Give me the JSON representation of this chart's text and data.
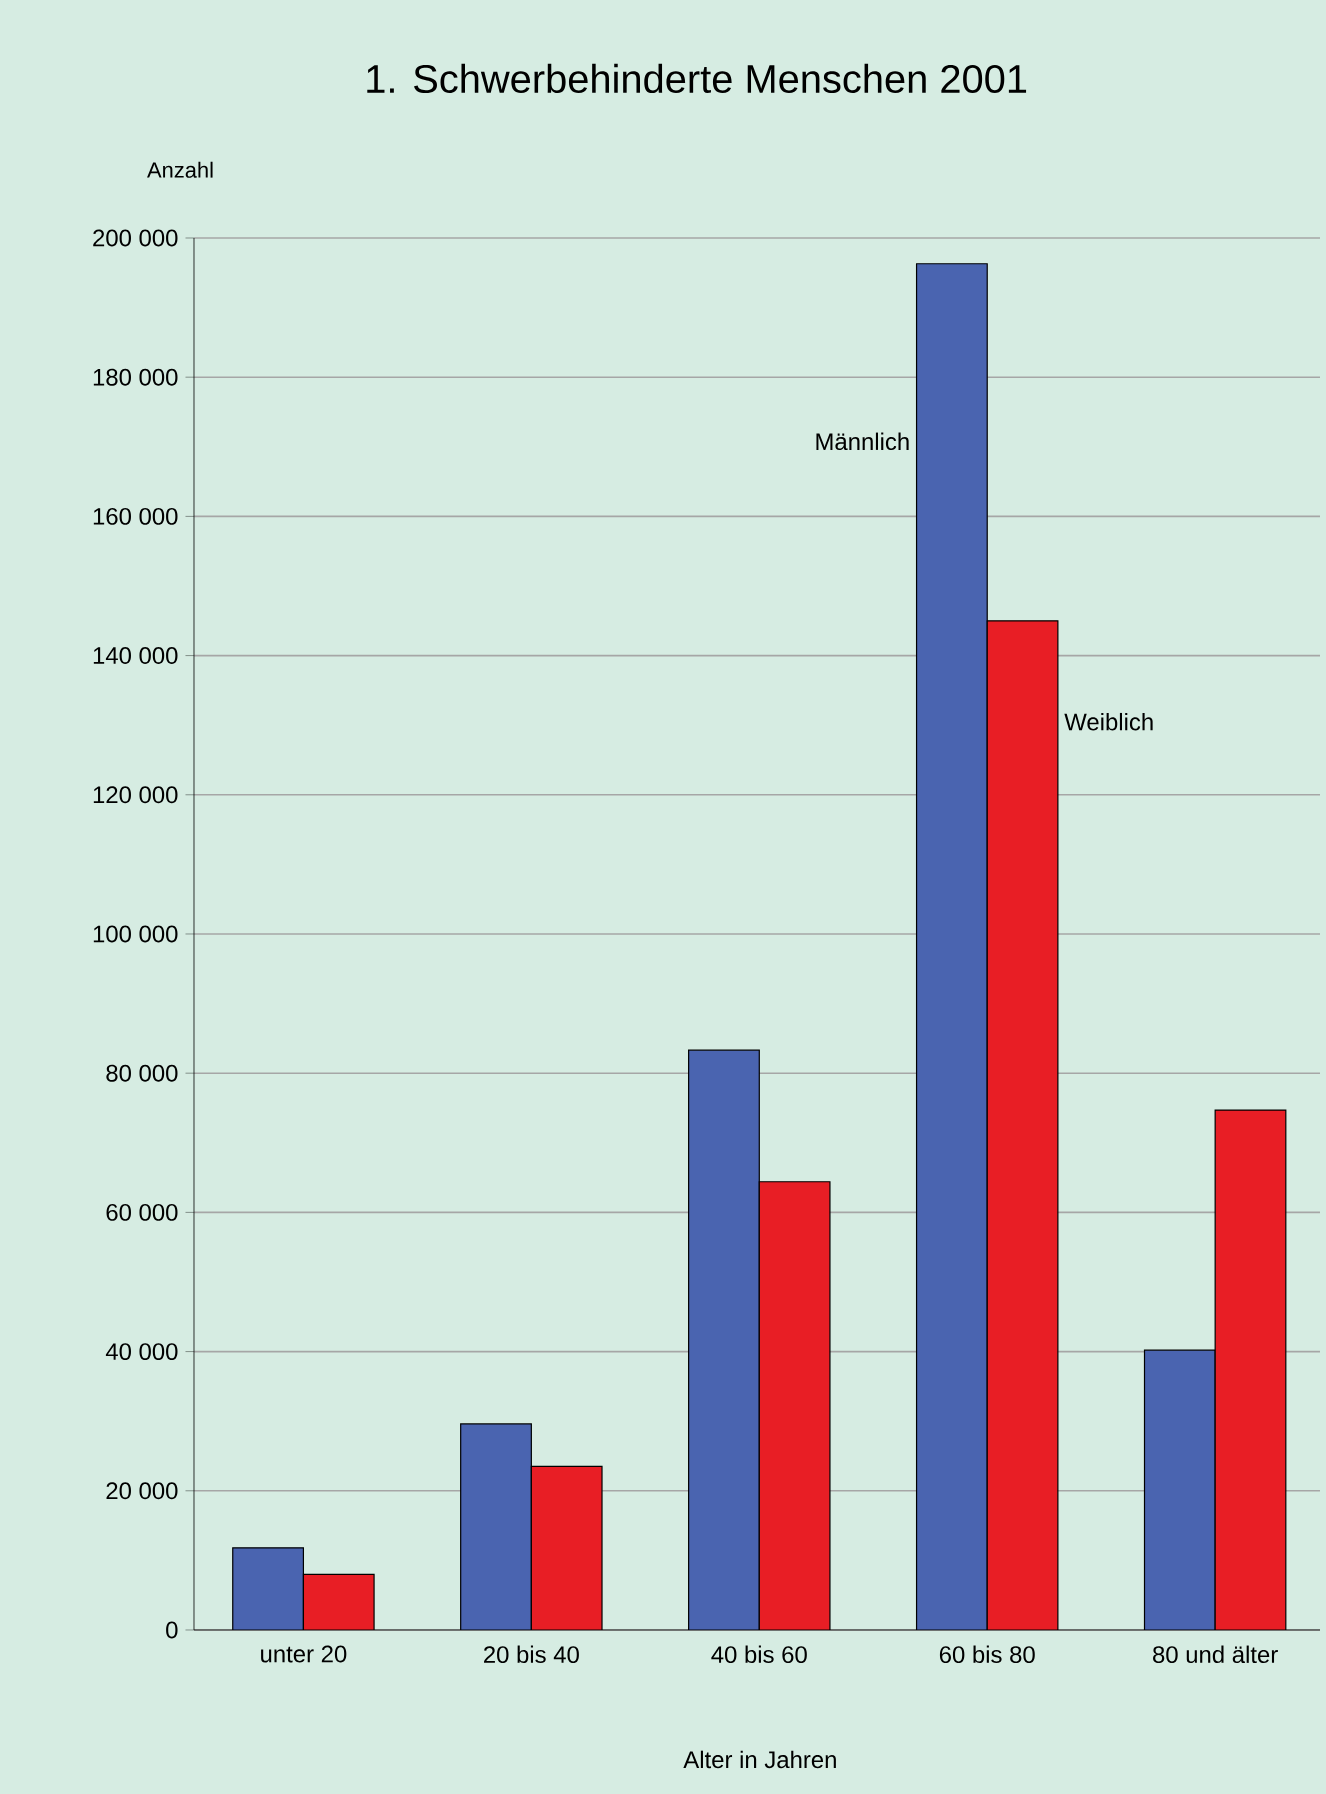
{
  "chart_data": {
    "type": "bar",
    "title": "1. Schwerbehinderte Menschen 2001",
    "ylabel": "Anzahl",
    "xlabel": "Alter in Jahren",
    "categories": [
      "unter 20",
      "20 bis 40",
      "40 bis 60",
      "60 bis 80",
      "80 und älter"
    ],
    "series": [
      {
        "name": "Männlich",
        "color": "#4a64b0",
        "values": [
          11800,
          29600,
          83300,
          196300,
          40200
        ]
      },
      {
        "name": "Weiblich",
        "color": "#e81e25",
        "values": [
          8000,
          23500,
          64400,
          145000,
          74700
        ]
      }
    ],
    "ylim": [
      0,
      200000
    ],
    "yticks": [
      0,
      {
        "value": 20000,
        "label": "20 000"
      },
      {
        "value": 40000,
        "label": "40 000"
      },
      {
        "value": 60000,
        "label": "60 000"
      },
      {
        "value": 80000,
        "label": "80 000"
      },
      {
        "value": 100000,
        "label": "100 000"
      },
      {
        "value": 120000,
        "label": "120 000"
      },
      {
        "value": 140000,
        "label": "140 000"
      },
      {
        "value": 160000,
        "label": "160 000"
      },
      {
        "value": 180000,
        "label": "180 000"
      },
      {
        "value": 200000,
        "label": "200 000"
      }
    ],
    "grid": "y"
  }
}
